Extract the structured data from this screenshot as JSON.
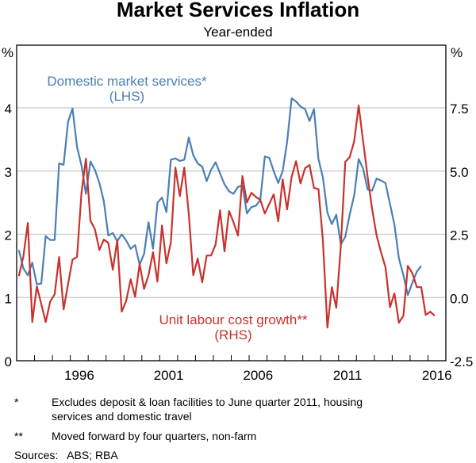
{
  "chart_data": {
    "type": "line",
    "title": "Market Services Inflation",
    "subtitle": "Year-ended",
    "left_axis": {
      "unit": "%",
      "ylim": [
        0,
        4
      ],
      "ticks": [
        "0",
        "1",
        "2",
        "3",
        "4"
      ]
    },
    "right_axis": {
      "unit": "%",
      "ylim": [
        -2.5,
        7.5
      ],
      "ticks": [
        "-2.5",
        "0.0",
        "2.5",
        "5.0",
        "7.5"
      ]
    },
    "x_axis": {
      "xlim": [
        1993,
        2017
      ],
      "tick_labels": [
        "1996",
        "2001",
        "2006",
        "2011",
        "2016"
      ],
      "tick_years": [
        1996,
        2001,
        2006,
        2011,
        2016
      ]
    },
    "grid": true,
    "series": [
      {
        "name": "Domestic market services*",
        "axis_label": "(LHS)",
        "axis": "left",
        "color": "#4a7fb5",
        "start": 1993.125,
        "step": 0.25,
        "values": [
          1.75,
          1.46,
          1.35,
          1.55,
          1.21,
          1.22,
          1.97,
          1.91,
          1.91,
          3.12,
          3.1,
          3.78,
          3.99,
          3.38,
          3.09,
          2.64,
          3.15,
          3.02,
          2.81,
          2.52,
          1.98,
          2.02,
          1.89,
          2.0,
          1.9,
          1.77,
          1.83,
          1.52,
          1.69,
          2.19,
          1.77,
          2.5,
          2.58,
          2.35,
          3.18,
          3.2,
          3.16,
          3.18,
          3.53,
          3.25,
          3.12,
          3.07,
          2.84,
          3.02,
          3.14,
          2.96,
          2.79,
          2.68,
          2.64,
          2.75,
          2.77,
          2.33,
          2.43,
          2.45,
          2.54,
          3.23,
          3.21,
          3.0,
          2.81,
          3.0,
          3.46,
          4.15,
          4.1,
          4.02,
          3.98,
          3.79,
          3.98,
          3.19,
          2.9,
          2.34,
          2.16,
          2.31,
          1.84,
          1.96,
          2.31,
          2.62,
          3.19,
          3.04,
          2.71,
          2.69,
          2.88,
          2.85,
          2.81,
          2.48,
          2.15,
          1.62,
          1.35,
          1.04,
          1.23,
          1.41,
          1.5
        ]
      },
      {
        "name": "Unit labour cost growth**",
        "axis_label": "(RHS)",
        "axis": "right",
        "color": "#c8322d",
        "start": 1993.125,
        "step": 0.25,
        "values": [
          0.85,
          1.63,
          2.95,
          -0.97,
          0.44,
          -0.25,
          -0.97,
          -0.16,
          0.13,
          1.6,
          -0.47,
          0.53,
          1.5,
          1.6,
          4.14,
          5.49,
          3.04,
          2.7,
          1.88,
          2.29,
          2.16,
          1.1,
          2.26,
          -0.56,
          -0.13,
          0.72,
          0.03,
          1.32,
          0.34,
          0.88,
          1.79,
          0.63,
          2.85,
          1.35,
          2.19,
          5.14,
          4.01,
          5.14,
          3.29,
          0.88,
          1.54,
          0.6,
          1.66,
          1.66,
          2.1,
          3.45,
          1.82,
          3.42,
          2.98,
          2.45,
          4.8,
          3.76,
          4.14,
          3.98,
          3.86,
          3.32,
          3.7,
          4.08,
          3.01,
          4.67,
          3.48,
          4.77,
          5.39,
          4.51,
          5.11,
          5.24,
          4.33,
          4.29,
          2.26,
          -1.19,
          0.41,
          -0.41,
          2.04,
          5.36,
          5.55,
          6.18,
          7.59,
          6.18,
          4.77,
          3.51,
          2.45,
          1.79,
          1.2,
          -0.38,
          0.16,
          -1.0,
          -0.72,
          1.25,
          0.97,
          0.41,
          0.41,
          -0.69,
          -0.56,
          -0.72
        ]
      }
    ]
  },
  "footnotes": {
    "star_mark": "*",
    "star_text_1": "Excludes deposit & loan facilities to June quarter 2011, housing",
    "star_text_2": "services and domestic travel",
    "double_star_mark": "**",
    "double_star_text": "Moved forward by four quarters, non-farm",
    "sources": "Sources:   ABS; RBA"
  }
}
